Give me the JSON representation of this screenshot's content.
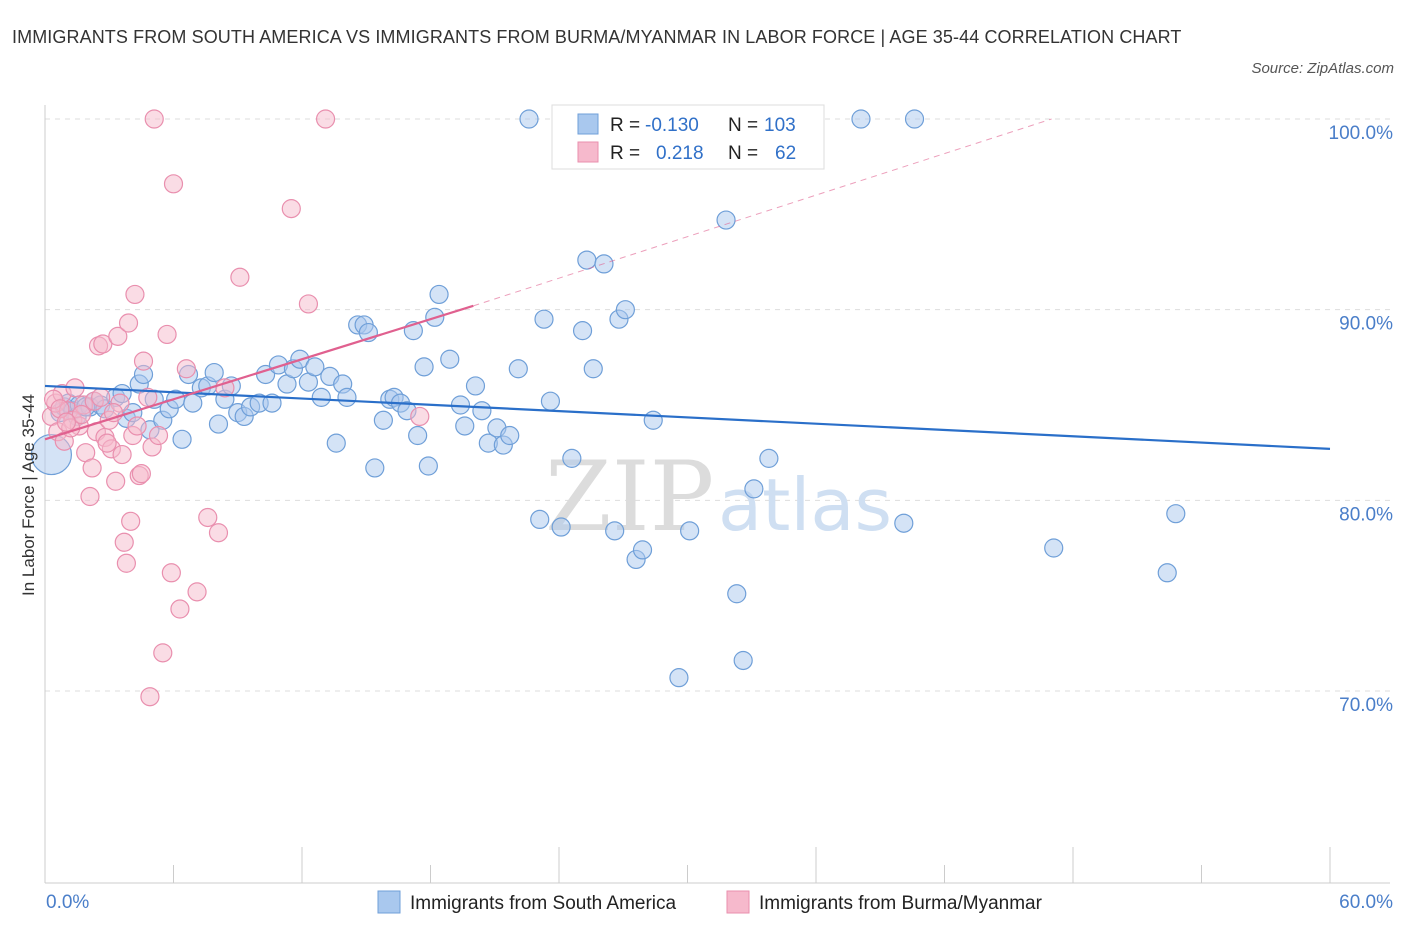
{
  "header": {
    "title": "IMMIGRANTS FROM SOUTH AMERICA VS IMMIGRANTS FROM BURMA/MYANMAR IN LABOR FORCE | AGE 35-44 CORRELATION CHART",
    "source": "Source: ZipAtlas.com"
  },
  "watermark": {
    "zip": "ZIP",
    "atlas": "atlas"
  },
  "legend": {
    "r_label": "R =",
    "n_label": "N =",
    "rows": [
      {
        "r": "-0.130",
        "n": "103"
      },
      {
        "r": "0.218",
        "n": "62"
      }
    ]
  },
  "colors": {
    "blue_fill": "#a9c8ee",
    "blue_stroke": "#6f9fd8",
    "blue_line": "#2a6fc9",
    "pink_fill": "#f6b9cc",
    "pink_stroke": "#e98fae",
    "pink_line": "#e0608f",
    "grid": "#dddddd",
    "axis_text": "#4a7ec9"
  },
  "chart_data": {
    "type": "scatter",
    "xlabel": "",
    "ylabel": "In Labor Force | Age 35-44",
    "xlim": [
      0,
      60
    ],
    "ylim": [
      60,
      100
    ],
    "x_tick_labels": [
      {
        "value": 0,
        "label": "0.0%"
      },
      {
        "value": 60,
        "label": "60.0%"
      }
    ],
    "y_tick_labels": [
      {
        "value": 100,
        "label": "100.0%"
      },
      {
        "value": 90,
        "label": "90.0%"
      },
      {
        "value": 80,
        "label": "80.0%"
      },
      {
        "value": 70,
        "label": "70.0%"
      }
    ],
    "series": [
      {
        "name": "Immigrants from South America",
        "color": "#a9c8ee",
        "trend": {
          "x": [
            0,
            60
          ],
          "y": [
            86.0,
            82.7
          ]
        },
        "points": [
          [
            0.3,
            82.4
          ],
          [
            0.7,
            84.6
          ],
          [
            0.9,
            84.9
          ],
          [
            1.1,
            85.1
          ],
          [
            1.3,
            84.7
          ],
          [
            1.5,
            84.4
          ],
          [
            1.6,
            85.0
          ],
          [
            2.1,
            84.9
          ],
          [
            2.3,
            85.2
          ],
          [
            2.6,
            85.0
          ],
          [
            2.8,
            84.8
          ],
          [
            3.3,
            85.4
          ],
          [
            3.6,
            85.6
          ],
          [
            3.8,
            84.3
          ],
          [
            4.1,
            84.6
          ],
          [
            4.4,
            86.1
          ],
          [
            4.6,
            86.6
          ],
          [
            4.9,
            83.7
          ],
          [
            5.1,
            85.3
          ],
          [
            5.5,
            84.2
          ],
          [
            5.8,
            84.8
          ],
          [
            6.1,
            85.3
          ],
          [
            6.4,
            83.2
          ],
          [
            6.7,
            86.6
          ],
          [
            6.9,
            85.1
          ],
          [
            7.3,
            85.9
          ],
          [
            7.6,
            86.0
          ],
          [
            7.9,
            86.7
          ],
          [
            8.1,
            84.0
          ],
          [
            8.4,
            85.3
          ],
          [
            8.7,
            86.0
          ],
          [
            9.0,
            84.6
          ],
          [
            9.3,
            84.4
          ],
          [
            9.6,
            84.9
          ],
          [
            10.0,
            85.1
          ],
          [
            10.3,
            86.6
          ],
          [
            10.6,
            85.1
          ],
          [
            10.9,
            87.1
          ],
          [
            11.3,
            86.1
          ],
          [
            11.6,
            86.9
          ],
          [
            11.9,
            87.4
          ],
          [
            12.3,
            86.2
          ],
          [
            12.6,
            87.0
          ],
          [
            12.9,
            85.4
          ],
          [
            13.3,
            86.5
          ],
          [
            13.6,
            83.0
          ],
          [
            13.9,
            86.1
          ],
          [
            14.1,
            85.4
          ],
          [
            14.6,
            89.2
          ],
          [
            14.9,
            89.2
          ],
          [
            15.1,
            88.8
          ],
          [
            15.4,
            81.7
          ],
          [
            15.8,
            84.2
          ],
          [
            16.1,
            85.3
          ],
          [
            16.3,
            85.4
          ],
          [
            16.6,
            85.1
          ],
          [
            16.9,
            84.7
          ],
          [
            17.2,
            88.9
          ],
          [
            17.4,
            83.4
          ],
          [
            17.7,
            87.0
          ],
          [
            17.9,
            81.8
          ],
          [
            18.2,
            89.6
          ],
          [
            18.4,
            90.8
          ],
          [
            18.9,
            87.4
          ],
          [
            19.4,
            85.0
          ],
          [
            19.6,
            83.9
          ],
          [
            20.1,
            86.0
          ],
          [
            20.4,
            84.7
          ],
          [
            20.7,
            83.0
          ],
          [
            21.1,
            83.8
          ],
          [
            21.4,
            82.9
          ],
          [
            21.7,
            83.4
          ],
          [
            22.1,
            86.9
          ],
          [
            22.6,
            100.0
          ],
          [
            23.1,
            79.0
          ],
          [
            23.3,
            89.5
          ],
          [
            23.6,
            85.2
          ],
          [
            24.1,
            78.6
          ],
          [
            24.6,
            82.2
          ],
          [
            25.1,
            88.9
          ],
          [
            25.3,
            92.6
          ],
          [
            25.6,
            86.9
          ],
          [
            26.1,
            92.4
          ],
          [
            26.6,
            78.4
          ],
          [
            26.8,
            89.5
          ],
          [
            27.1,
            90.0
          ],
          [
            27.6,
            76.9
          ],
          [
            27.9,
            77.4
          ],
          [
            28.4,
            84.2
          ],
          [
            29.6,
            70.7
          ],
          [
            30.1,
            78.4
          ],
          [
            31.8,
            94.7
          ],
          [
            32.3,
            75.1
          ],
          [
            32.6,
            71.6
          ],
          [
            33.1,
            80.6
          ],
          [
            33.8,
            82.2
          ],
          [
            38.1,
            100.0
          ],
          [
            40.1,
            78.8
          ],
          [
            40.6,
            100.0
          ],
          [
            47.1,
            77.5
          ],
          [
            52.4,
            76.2
          ],
          [
            52.8,
            79.3
          ],
          [
            1.9,
            84.9
          ]
        ]
      },
      {
        "name": "Immigrants from Burma/Myanmar",
        "color": "#f6b9cc",
        "trend": {
          "x": [
            0,
            20
          ],
          "y": [
            83.2,
            90.2
          ]
        },
        "trend_dashed": {
          "x": [
            20,
            47
          ],
          "y": [
            90.2,
            100.0
          ]
        },
        "points": [
          [
            0.3,
            84.4
          ],
          [
            0.5,
            85.1
          ],
          [
            0.6,
            83.6
          ],
          [
            0.8,
            85.6
          ],
          [
            0.9,
            83.1
          ],
          [
            1.1,
            84.7
          ],
          [
            1.3,
            84.2
          ],
          [
            1.4,
            85.9
          ],
          [
            1.6,
            83.9
          ],
          [
            1.8,
            85.0
          ],
          [
            1.9,
            82.5
          ],
          [
            2.1,
            80.2
          ],
          [
            2.2,
            81.7
          ],
          [
            2.4,
            83.6
          ],
          [
            2.5,
            88.1
          ],
          [
            2.7,
            88.2
          ],
          [
            2.8,
            83.3
          ],
          [
            3.0,
            84.2
          ],
          [
            3.1,
            82.7
          ],
          [
            3.3,
            81.0
          ],
          [
            3.4,
            88.6
          ],
          [
            3.5,
            85.1
          ],
          [
            3.6,
            82.4
          ],
          [
            3.7,
            77.8
          ],
          [
            3.8,
            76.7
          ],
          [
            3.9,
            89.3
          ],
          [
            4.0,
            78.9
          ],
          [
            4.1,
            83.4
          ],
          [
            4.2,
            90.8
          ],
          [
            4.4,
            81.3
          ],
          [
            4.5,
            81.4
          ],
          [
            4.6,
            87.3
          ],
          [
            4.8,
            85.4
          ],
          [
            5.0,
            82.8
          ],
          [
            5.1,
            100.0
          ],
          [
            5.3,
            83.4
          ],
          [
            5.5,
            72.0
          ],
          [
            5.7,
            88.7
          ],
          [
            5.9,
            76.2
          ],
          [
            6.0,
            96.6
          ],
          [
            6.3,
            74.3
          ],
          [
            6.6,
            86.9
          ],
          [
            7.1,
            75.2
          ],
          [
            7.6,
            79.1
          ],
          [
            8.1,
            78.3
          ],
          [
            9.1,
            91.7
          ],
          [
            4.9,
            69.7
          ],
          [
            11.5,
            95.3
          ],
          [
            12.3,
            90.3
          ],
          [
            13.1,
            100.0
          ],
          [
            8.4,
            85.9
          ],
          [
            17.5,
            84.4
          ],
          [
            2.3,
            85.2
          ],
          [
            1.2,
            83.8
          ],
          [
            0.4,
            85.3
          ],
          [
            3.2,
            84.6
          ],
          [
            2.6,
            85.4
          ],
          [
            1.7,
            84.5
          ],
          [
            0.7,
            84.8
          ],
          [
            2.9,
            83.0
          ],
          [
            4.3,
            83.9
          ],
          [
            1.0,
            84.1
          ]
        ]
      }
    ],
    "legend_position": "top-center",
    "grid": true
  }
}
